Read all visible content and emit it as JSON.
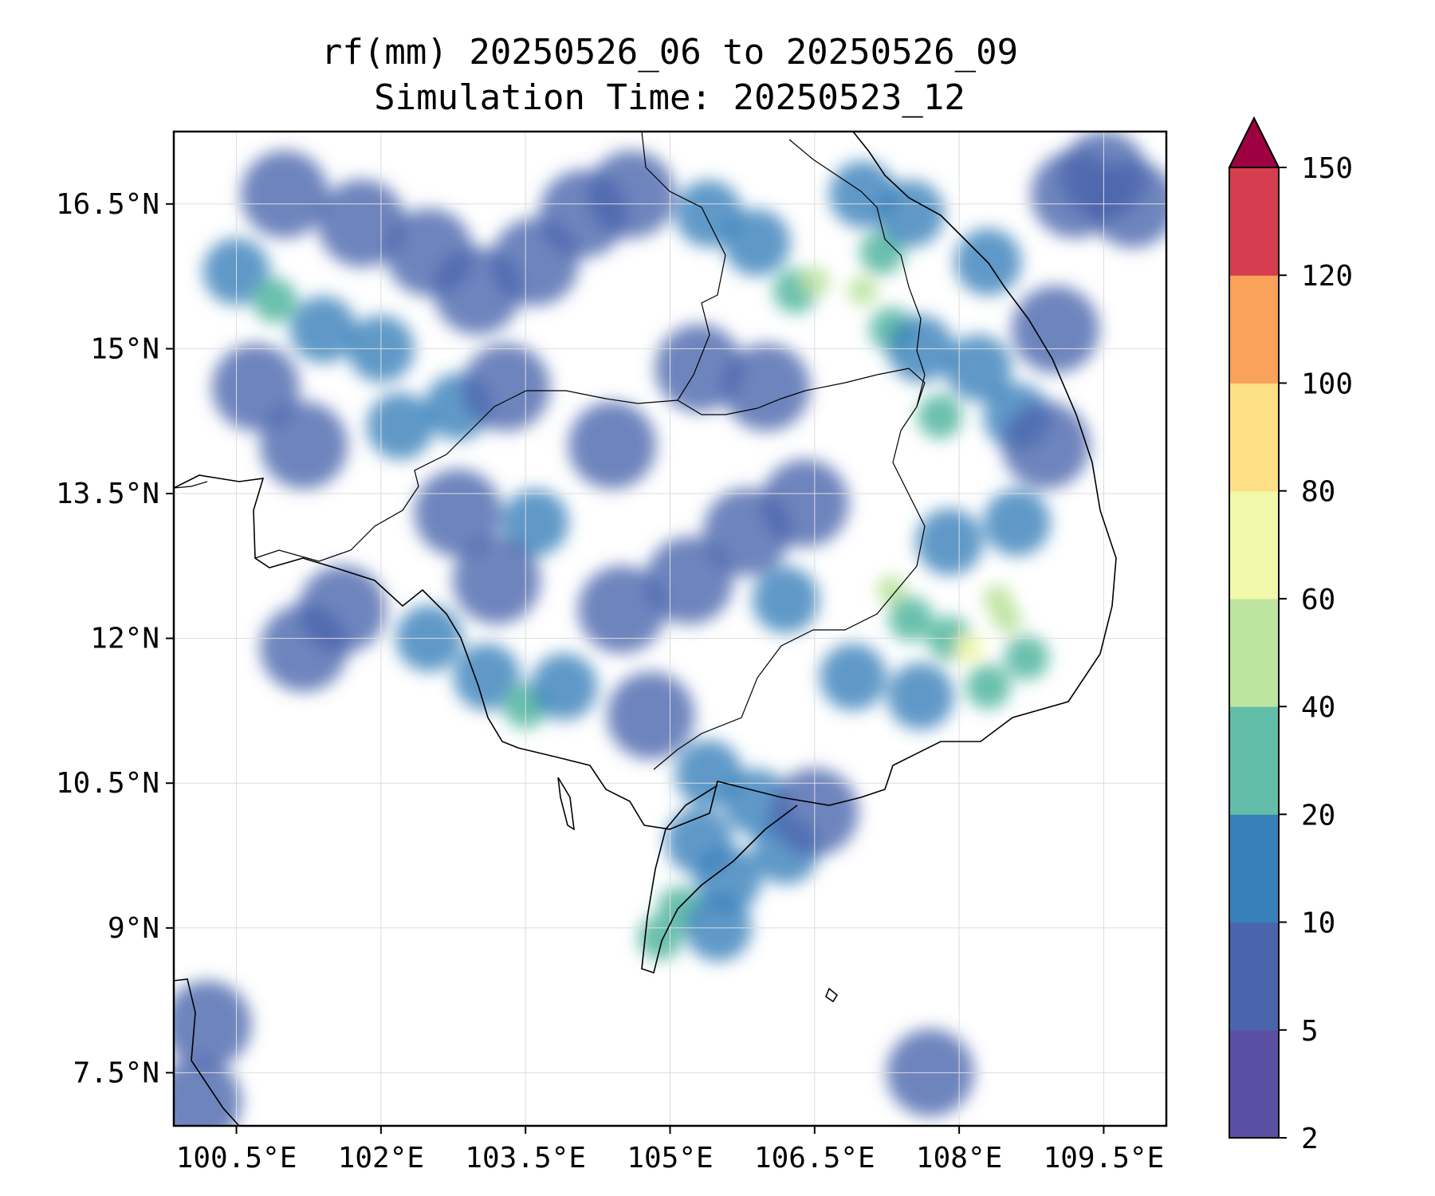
{
  "title": {
    "line1": "rf(mm) 20250526_06 to 20250526_09",
    "line2": "Simulation Time: 20250523_12"
  },
  "map": {
    "lon_range": [
      99.85,
      110.15
    ],
    "lat_range": [
      6.95,
      17.25
    ],
    "x_ticks": [
      {
        "value": 100.5,
        "label": "100.5°E"
      },
      {
        "value": 102.0,
        "label": "102°E"
      },
      {
        "value": 103.5,
        "label": "103.5°E"
      },
      {
        "value": 105.0,
        "label": "105°E"
      },
      {
        "value": 106.5,
        "label": "106.5°E"
      },
      {
        "value": 108.0,
        "label": "108°E"
      },
      {
        "value": 109.5,
        "label": "109.5°E"
      }
    ],
    "y_ticks": [
      {
        "value": 16.5,
        "label": "16.5°N"
      },
      {
        "value": 15.0,
        "label": "15°N"
      },
      {
        "value": 13.5,
        "label": "13.5°N"
      },
      {
        "value": 12.0,
        "label": "12°N"
      },
      {
        "value": 10.5,
        "label": "10.5°N"
      },
      {
        "value": 9.0,
        "label": "9°N"
      },
      {
        "value": 7.5,
        "label": "7.5°N"
      }
    ],
    "grid": true,
    "coastline_color": "#000000",
    "land_shade": "#ffffff",
    "rain_cells": [
      {
        "lon": 100.5,
        "lat": 15.8,
        "v": 10
      },
      {
        "lon": 100.9,
        "lat": 15.5,
        "v": 20
      },
      {
        "lon": 101.4,
        "lat": 15.2,
        "v": 10
      },
      {
        "lon": 102.0,
        "lat": 15.0,
        "v": 10
      },
      {
        "lon": 101.0,
        "lat": 16.6,
        "v": 5
      },
      {
        "lon": 101.8,
        "lat": 16.3,
        "v": 5
      },
      {
        "lon": 102.5,
        "lat": 16.0,
        "v": 5
      },
      {
        "lon": 103.0,
        "lat": 15.6,
        "v": 5
      },
      {
        "lon": 103.6,
        "lat": 15.9,
        "v": 5
      },
      {
        "lon": 104.1,
        "lat": 16.4,
        "v": 5
      },
      {
        "lon": 104.6,
        "lat": 16.6,
        "v": 5
      },
      {
        "lon": 102.2,
        "lat": 14.2,
        "v": 10
      },
      {
        "lon": 102.8,
        "lat": 14.4,
        "v": 10
      },
      {
        "lon": 101.2,
        "lat": 14.0,
        "v": 5
      },
      {
        "lon": 100.7,
        "lat": 14.6,
        "v": 5
      },
      {
        "lon": 103.3,
        "lat": 14.6,
        "v": 5
      },
      {
        "lon": 105.4,
        "lat": 16.4,
        "v": 10
      },
      {
        "lon": 105.9,
        "lat": 16.1,
        "v": 10
      },
      {
        "lon": 106.3,
        "lat": 15.6,
        "v": 20
      },
      {
        "lon": 106.5,
        "lat": 15.7,
        "v": 40
      },
      {
        "lon": 107.0,
        "lat": 15.6,
        "v": 40
      },
      {
        "lon": 107.2,
        "lat": 16.0,
        "v": 20
      },
      {
        "lon": 107.3,
        "lat": 15.2,
        "v": 20
      },
      {
        "lon": 107.6,
        "lat": 15.0,
        "v": 10
      },
      {
        "lon": 107.8,
        "lat": 14.3,
        "v": 20
      },
      {
        "lon": 108.2,
        "lat": 14.8,
        "v": 10
      },
      {
        "lon": 108.6,
        "lat": 14.3,
        "v": 10
      },
      {
        "lon": 107.0,
        "lat": 16.6,
        "v": 10
      },
      {
        "lon": 107.5,
        "lat": 16.4,
        "v": 10
      },
      {
        "lon": 108.3,
        "lat": 15.9,
        "v": 10
      },
      {
        "lon": 106.0,
        "lat": 14.6,
        "v": 5
      },
      {
        "lon": 105.3,
        "lat": 14.8,
        "v": 5
      },
      {
        "lon": 104.4,
        "lat": 14.0,
        "v": 5
      },
      {
        "lon": 103.6,
        "lat": 13.2,
        "v": 10
      },
      {
        "lon": 103.2,
        "lat": 12.6,
        "v": 5
      },
      {
        "lon": 102.8,
        "lat": 13.3,
        "v": 5
      },
      {
        "lon": 104.5,
        "lat": 12.3,
        "v": 5
      },
      {
        "lon": 105.2,
        "lat": 12.6,
        "v": 5
      },
      {
        "lon": 105.8,
        "lat": 13.1,
        "v": 5
      },
      {
        "lon": 106.4,
        "lat": 13.4,
        "v": 5
      },
      {
        "lon": 106.2,
        "lat": 12.4,
        "v": 10
      },
      {
        "lon": 107.3,
        "lat": 12.5,
        "v": 40
      },
      {
        "lon": 107.5,
        "lat": 12.2,
        "v": 20
      },
      {
        "lon": 107.9,
        "lat": 12.0,
        "v": 20
      },
      {
        "lon": 108.1,
        "lat": 11.9,
        "v": 60
      },
      {
        "lon": 108.4,
        "lat": 12.4,
        "v": 40
      },
      {
        "lon": 108.5,
        "lat": 12.2,
        "v": 40
      },
      {
        "lon": 108.7,
        "lat": 11.8,
        "v": 20
      },
      {
        "lon": 108.3,
        "lat": 11.5,
        "v": 20
      },
      {
        "lon": 107.6,
        "lat": 11.4,
        "v": 10
      },
      {
        "lon": 106.9,
        "lat": 11.6,
        "v": 10
      },
      {
        "lon": 108.6,
        "lat": 13.2,
        "v": 10
      },
      {
        "lon": 107.9,
        "lat": 13.0,
        "v": 10
      },
      {
        "lon": 103.1,
        "lat": 11.6,
        "v": 10
      },
      {
        "lon": 103.5,
        "lat": 11.3,
        "v": 30
      },
      {
        "lon": 103.9,
        "lat": 11.5,
        "v": 10
      },
      {
        "lon": 102.5,
        "lat": 12.0,
        "v": 10
      },
      {
        "lon": 101.6,
        "lat": 12.3,
        "v": 5
      },
      {
        "lon": 101.2,
        "lat": 11.9,
        "v": 5
      },
      {
        "lon": 104.8,
        "lat": 11.2,
        "v": 5
      },
      {
        "lon": 105.4,
        "lat": 10.6,
        "v": 10
      },
      {
        "lon": 105.9,
        "lat": 10.3,
        "v": 10
      },
      {
        "lon": 105.3,
        "lat": 9.9,
        "v": 10
      },
      {
        "lon": 105.6,
        "lat": 9.5,
        "v": 10
      },
      {
        "lon": 105.1,
        "lat": 9.2,
        "v": 30
      },
      {
        "lon": 104.9,
        "lat": 8.9,
        "v": 20
      },
      {
        "lon": 105.5,
        "lat": 9.0,
        "v": 10
      },
      {
        "lon": 106.2,
        "lat": 9.8,
        "v": 10
      },
      {
        "lon": 106.5,
        "lat": 10.2,
        "v": 5
      },
      {
        "lon": 100.1,
        "lat": 7.2,
        "v": 5
      },
      {
        "lon": 100.2,
        "lat": 8.0,
        "v": 5
      },
      {
        "lon": 107.7,
        "lat": 7.5,
        "v": 5
      },
      {
        "lon": 109.2,
        "lat": 16.6,
        "v": 5
      },
      {
        "lon": 109.5,
        "lat": 16.8,
        "v": 5
      },
      {
        "lon": 109.8,
        "lat": 16.5,
        "v": 5
      },
      {
        "lon": 109.0,
        "lat": 15.2,
        "v": 5
      },
      {
        "lon": 108.9,
        "lat": 14.0,
        "v": 5
      }
    ]
  },
  "colorbar": {
    "levels": [
      2,
      5,
      10,
      20,
      40,
      60,
      80,
      100,
      120,
      150
    ],
    "labels": [
      "2",
      "5",
      "10",
      "20",
      "40",
      "60",
      "80",
      "100",
      "120",
      "150"
    ],
    "colors": [
      "#5a4fa2",
      "#4b65ad",
      "#3880ba",
      "#62bda9",
      "#bde4a0",
      "#f1f8a9",
      "#fde085",
      "#faa15a",
      "#d53e4f"
    ],
    "extend_color": "#9e0142"
  }
}
